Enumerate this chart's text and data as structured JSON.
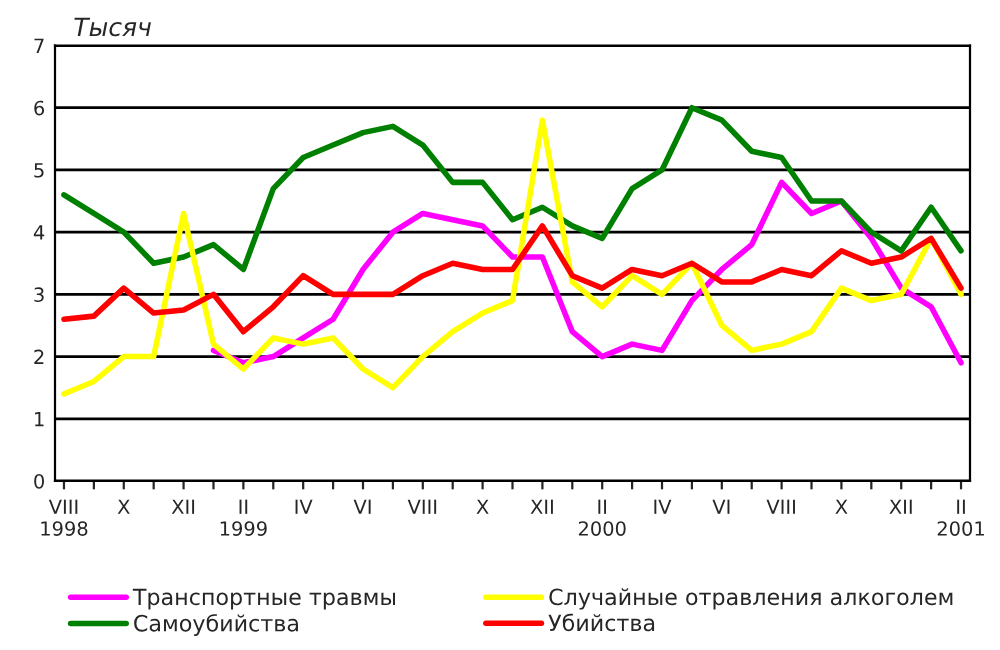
{
  "chart_data": {
    "type": "line",
    "ylabel": "Тысяч",
    "categories": [
      "VIII\n1998",
      null,
      "X",
      null,
      "XII",
      null,
      "II\n1999",
      null,
      "IV",
      null,
      "VI",
      null,
      "VIII",
      null,
      "X",
      null,
      "XII",
      null,
      "II\n2000",
      null,
      "IV",
      null,
      "VI",
      null,
      "VIII",
      null,
      "X",
      null,
      "XII",
      null,
      "II\n2001"
    ],
    "series": [
      {
        "name": "Транспортные травмы",
        "color": "#ff00ff",
        "values": [
          null,
          null,
          null,
          null,
          null,
          2.1,
          1.9,
          2.0,
          2.3,
          2.6,
          3.4,
          4.0,
          4.3,
          4.2,
          4.1,
          3.6,
          3.6,
          2.4,
          2.0,
          2.2,
          2.1,
          2.9,
          3.4,
          3.8,
          4.8,
          4.3,
          4.5,
          3.9,
          3.1,
          2.8,
          1.9
        ]
      },
      {
        "name": "Самоубийства",
        "color": "#008000",
        "values": [
          4.6,
          4.3,
          4.0,
          3.5,
          3.6,
          3.8,
          3.4,
          4.7,
          5.2,
          5.4,
          5.6,
          5.7,
          5.4,
          4.8,
          4.8,
          4.2,
          4.4,
          4.1,
          3.9,
          4.7,
          5.0,
          6.0,
          5.8,
          5.3,
          5.2,
          4.5,
          4.5,
          4.0,
          3.7,
          4.4,
          3.7
        ]
      },
      {
        "name": "Случайные отравления алкоголем",
        "color": "#ffff00",
        "values": [
          1.4,
          1.6,
          2.0,
          2.0,
          4.3,
          2.2,
          1.8,
          2.3,
          2.2,
          2.3,
          1.8,
          1.5,
          2.0,
          2.4,
          2.7,
          2.9,
          5.8,
          3.2,
          2.8,
          3.3,
          3.0,
          3.5,
          2.5,
          2.1,
          2.2,
          2.4,
          3.1,
          2.9,
          3.0,
          3.9,
          3.0
        ]
      },
      {
        "name": "Убийства",
        "color": "#ff0000",
        "values": [
          2.6,
          2.65,
          3.1,
          2.7,
          2.75,
          3.0,
          2.4,
          2.8,
          3.3,
          3.0,
          3.0,
          3.0,
          3.3,
          3.5,
          3.4,
          3.4,
          4.1,
          3.3,
          3.1,
          3.4,
          3.3,
          3.5,
          3.2,
          3.2,
          3.4,
          3.3,
          3.7,
          3.5,
          3.6,
          3.9,
          3.1
        ]
      }
    ],
    "ylim": [
      0,
      7
    ],
    "yticks": [
      0,
      1,
      2,
      3,
      4,
      5,
      6,
      7
    ],
    "grid": "y",
    "legend": "bottom",
    "marker": "none",
    "line_style": "solid"
  }
}
